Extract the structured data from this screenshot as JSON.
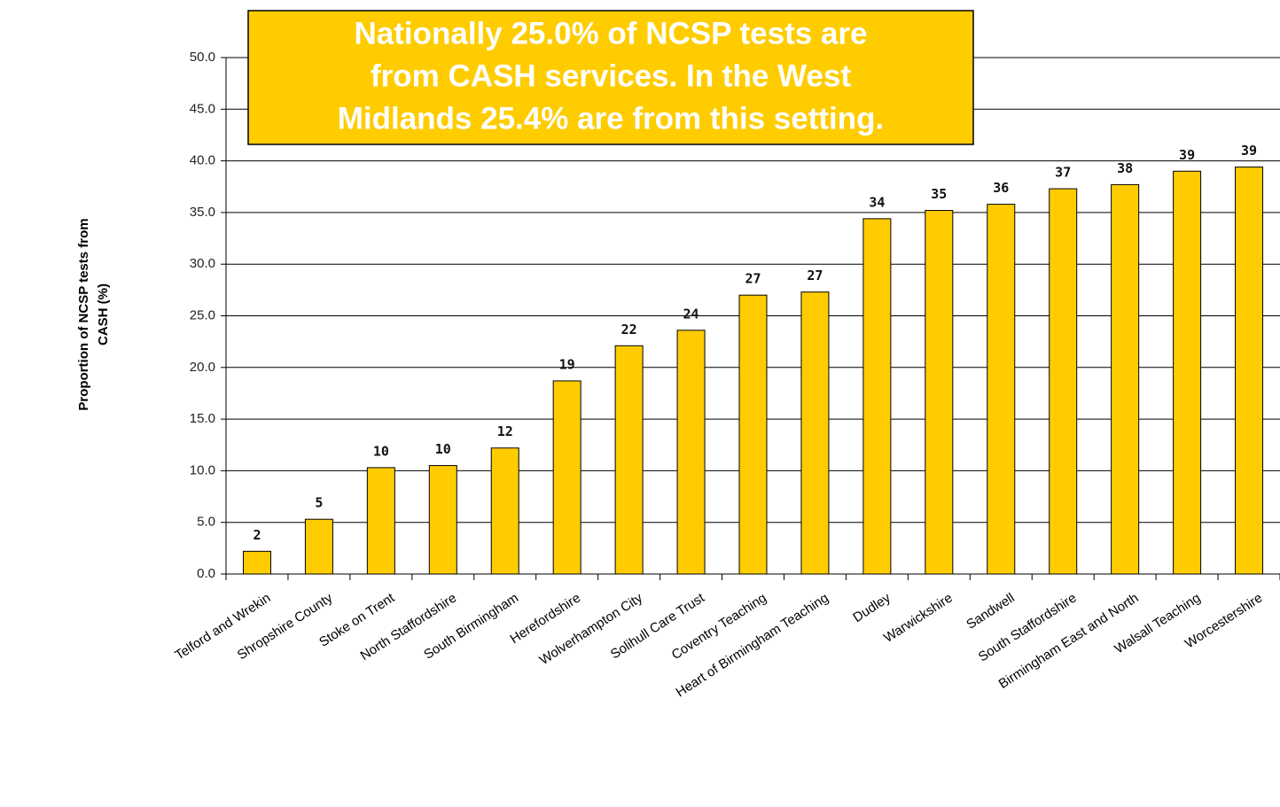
{
  "chart_data": {
    "type": "bar",
    "ylabel": [
      "Proportion of NCSP tests from",
      "CASH (%)"
    ],
    "annotation": [
      "Nationally 25.0% of NCSP tests are",
      "from CASH services. In the West",
      "Midlands 25.4% are from this setting."
    ],
    "categories": [
      "Telford and Wrekin",
      "Shropshire County",
      "Stoke on Trent",
      "North Staffordshire",
      "South Birmingham",
      "Herefordshire",
      "Wolverhampton City",
      "Solihull Care Trust",
      "Coventry Teaching",
      "Heart of Birmingham Teaching",
      "Dudley",
      "Warwickshire",
      "Sandwell",
      "South Staffordshire",
      "Birmingham East and North",
      "Walsall Teaching",
      "Worcestershire"
    ],
    "values": [
      2.2,
      5.3,
      10.3,
      10.5,
      12.2,
      18.7,
      22.1,
      23.6,
      27.0,
      27.3,
      34.4,
      35.2,
      35.8,
      37.3,
      37.7,
      39.0,
      39.4
    ],
    "value_labels": [
      "2",
      "5",
      "10",
      "10",
      "12",
      "19",
      "22",
      "24",
      "27",
      "27",
      "34",
      "35",
      "36",
      "37",
      "38",
      "39",
      "39"
    ],
    "color": "#ffcc00",
    "ylim": [
      0,
      50
    ],
    "yticks": [
      {
        "value": 0,
        "label": "0.0"
      },
      {
        "value": 5,
        "label": "5.0"
      },
      {
        "value": 10,
        "label": "10.0"
      },
      {
        "value": 15,
        "label": "15.0"
      },
      {
        "value": 20,
        "label": "20.0"
      },
      {
        "value": 25,
        "label": "25.0"
      },
      {
        "value": 30,
        "label": "30.0"
      },
      {
        "value": 35,
        "label": "35.0"
      },
      {
        "value": 40,
        "label": "40.0"
      },
      {
        "value": 45,
        "label": "45.0"
      },
      {
        "value": 50,
        "label": "50.0"
      }
    ],
    "grid": true
  }
}
